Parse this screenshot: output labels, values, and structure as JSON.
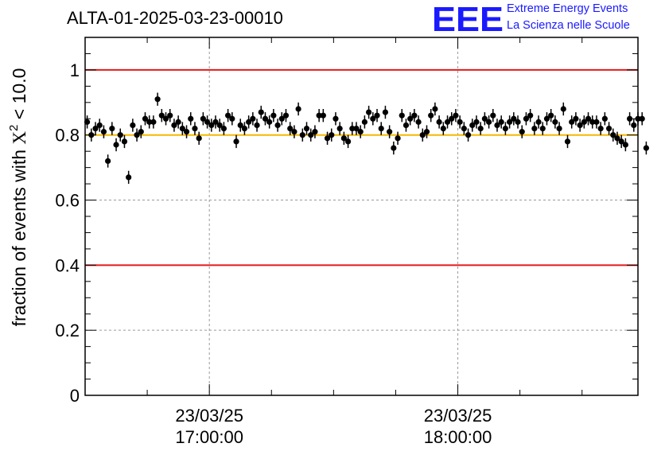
{
  "header": {
    "title": "ALTA-01-2025-03-23-00010",
    "logo_text": "EEE",
    "logo_line1": "Extreme Energy Events",
    "logo_line2": "La Scienza nelle Scuole"
  },
  "colors": {
    "markers": "#000000",
    "limit_lines": "#e41a1c",
    "reference_line": "#f5b800",
    "logo": "#1a1aff",
    "grid": "#9a9a9a"
  },
  "chart_data": {
    "type": "scatter",
    "error_bars": true,
    "ylabel": "fraction of events with",
    "ylabel_symbol": "X",
    "ylabel_sup": "2",
    "ylabel_tail": " < 10.0",
    "ylim": [
      0,
      1.1
    ],
    "yticks": [
      {
        "value": 0,
        "label": "0"
      },
      {
        "value": 0.2,
        "label": "0.2"
      },
      {
        "value": 0.4,
        "label": "0.4"
      },
      {
        "value": 0.6,
        "label": "0.6"
      },
      {
        "value": 0.8,
        "label": "0.8"
      },
      {
        "value": 1,
        "label": "1"
      }
    ],
    "xlim": [
      "2025-03-23 16:30:00",
      "2025-03-23 18:43:30"
    ],
    "xticks": [
      {
        "time": "2025-03-23 17:00:00",
        "line1": "23/03/25",
        "line2": "17:00:00"
      },
      {
        "time": "2025-03-23 18:00:00",
        "line1": "23/03/25",
        "line2": "18:00:00"
      }
    ],
    "grid": true,
    "hlines": [
      {
        "y": 1.0,
        "color": "#e41a1c"
      },
      {
        "y": 0.4,
        "color": "#e41a1c"
      },
      {
        "y": 0.8,
        "color": "#f5b800"
      }
    ],
    "bin_minutes": 1,
    "x_start": "2025-03-23 16:30:00",
    "error": 0.02,
    "y": [
      0.84,
      0.8,
      0.82,
      0.83,
      0.81,
      0.72,
      0.82,
      0.77,
      0.8,
      0.78,
      0.67,
      0.83,
      0.8,
      0.81,
      0.85,
      0.84,
      0.84,
      0.91,
      0.86,
      0.85,
      0.86,
      0.83,
      0.84,
      0.82,
      0.81,
      0.85,
      0.82,
      0.79,
      0.85,
      0.84,
      0.83,
      0.84,
      0.83,
      0.82,
      0.86,
      0.85,
      0.78,
      0.83,
      0.82,
      0.84,
      0.85,
      0.83,
      0.87,
      0.85,
      0.84,
      0.86,
      0.83,
      0.85,
      0.86,
      0.82,
      0.81,
      0.88,
      0.8,
      0.82,
      0.8,
      0.81,
      0.86,
      0.86,
      0.79,
      0.8,
      0.85,
      0.82,
      0.79,
      0.78,
      0.82,
      0.82,
      0.81,
      0.84,
      0.87,
      0.85,
      0.86,
      0.82,
      0.87,
      0.81,
      0.76,
      0.79,
      0.86,
      0.83,
      0.85,
      0.86,
      0.84,
      0.8,
      0.81,
      0.86,
      0.88,
      0.84,
      0.82,
      0.84,
      0.85,
      0.86,
      0.84,
      0.82,
      0.8,
      0.83,
      0.84,
      0.82,
      0.85,
      0.84,
      0.86,
      0.83,
      0.84,
      0.82,
      0.84,
      0.85,
      0.84,
      0.81,
      0.85,
      0.86,
      0.82,
      0.84,
      0.82,
      0.85,
      0.86,
      0.84,
      0.82,
      0.88,
      0.78,
      0.84,
      0.85,
      0.83,
      0.84,
      0.85,
      0.84,
      0.84,
      0.82,
      0.85,
      0.82,
      0.8,
      0.79,
      0.78,
      0.77,
      0.85,
      0.83,
      0.85,
      0.85,
      0.76
    ]
  }
}
